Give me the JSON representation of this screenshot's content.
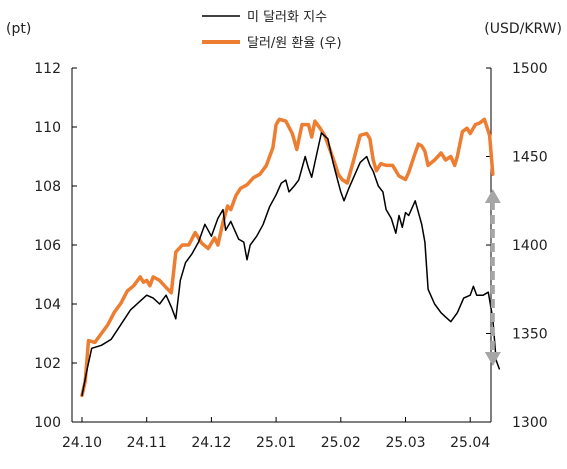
{
  "chart_data": {
    "type": "line",
    "title": "",
    "left_axis": {
      "label": "(pt)",
      "ylim": [
        100,
        112
      ],
      "ticks": [
        100,
        102,
        104,
        106,
        108,
        110,
        112
      ]
    },
    "right_axis": {
      "label": "(USD/KRW)",
      "ylim": [
        1300,
        1500
      ],
      "ticks": [
        1300,
        1350,
        1400,
        1450,
        1500
      ]
    },
    "x_axis": {
      "ticks": [
        "24.10",
        "24.11",
        "24.12",
        "25.01",
        "25.02",
        "25.03",
        "25.04"
      ],
      "range_months": [
        0,
        6.45
      ]
    },
    "grid": false,
    "legend_position": "top-center",
    "series": [
      {
        "name": "미 달러화 지수",
        "axis": "left",
        "color": "#000000",
        "points": [
          [
            0.0,
            100.9
          ],
          [
            0.08,
            101.8
          ],
          [
            0.15,
            102.5
          ],
          [
            0.3,
            102.6
          ],
          [
            0.45,
            102.8
          ],
          [
            0.6,
            103.3
          ],
          [
            0.75,
            103.8
          ],
          [
            0.9,
            104.1
          ],
          [
            1.0,
            104.3
          ],
          [
            1.1,
            104.2
          ],
          [
            1.2,
            104.0
          ],
          [
            1.3,
            104.3
          ],
          [
            1.38,
            103.9
          ],
          [
            1.45,
            103.5
          ],
          [
            1.52,
            104.8
          ],
          [
            1.6,
            105.4
          ],
          [
            1.7,
            105.7
          ],
          [
            1.8,
            106.1
          ],
          [
            1.9,
            106.7
          ],
          [
            2.0,
            106.3
          ],
          [
            2.1,
            106.9
          ],
          [
            2.18,
            107.2
          ],
          [
            2.22,
            106.5
          ],
          [
            2.3,
            106.8
          ],
          [
            2.42,
            106.2
          ],
          [
            2.5,
            106.1
          ],
          [
            2.55,
            105.5
          ],
          [
            2.6,
            106.0
          ],
          [
            2.7,
            106.3
          ],
          [
            2.8,
            106.7
          ],
          [
            2.9,
            107.3
          ],
          [
            3.0,
            107.7
          ],
          [
            3.08,
            108.1
          ],
          [
            3.15,
            108.2
          ],
          [
            3.2,
            107.8
          ],
          [
            3.28,
            108.0
          ],
          [
            3.35,
            108.2
          ],
          [
            3.45,
            109.0
          ],
          [
            3.5,
            108.6
          ],
          [
            3.55,
            108.3
          ],
          [
            3.6,
            108.8
          ],
          [
            3.7,
            109.8
          ],
          [
            3.8,
            109.6
          ],
          [
            3.88,
            108.8
          ],
          [
            3.95,
            108.2
          ],
          [
            4.0,
            107.8
          ],
          [
            4.05,
            107.5
          ],
          [
            4.12,
            107.9
          ],
          [
            4.2,
            108.3
          ],
          [
            4.3,
            108.8
          ],
          [
            4.4,
            109.0
          ],
          [
            4.45,
            108.7
          ],
          [
            4.5,
            108.5
          ],
          [
            4.58,
            108.0
          ],
          [
            4.65,
            107.8
          ],
          [
            4.7,
            107.2
          ],
          [
            4.78,
            106.9
          ],
          [
            4.85,
            106.4
          ],
          [
            4.9,
            107.0
          ],
          [
            4.95,
            106.6
          ],
          [
            5.0,
            107.1
          ],
          [
            5.05,
            107.0
          ],
          [
            5.15,
            107.5
          ],
          [
            5.25,
            106.7
          ],
          [
            5.3,
            106.1
          ],
          [
            5.35,
            104.5
          ],
          [
            5.45,
            104.0
          ],
          [
            5.55,
            103.7
          ],
          [
            5.6,
            103.6
          ],
          [
            5.7,
            103.4
          ],
          [
            5.8,
            103.7
          ],
          [
            5.9,
            104.2
          ],
          [
            6.0,
            104.3
          ],
          [
            6.05,
            104.6
          ],
          [
            6.1,
            104.3
          ],
          [
            6.2,
            104.3
          ],
          [
            6.28,
            104.4
          ],
          [
            6.35,
            103.5
          ],
          [
            6.4,
            102.1
          ],
          [
            6.45,
            101.8
          ]
        ]
      },
      {
        "name": "달러/원 환율 (우)",
        "axis": "right",
        "color": "#ED7D31",
        "points": [
          [
            0.0,
            1315
          ],
          [
            0.05,
            1323
          ],
          [
            0.1,
            1346
          ],
          [
            0.2,
            1345
          ],
          [
            0.3,
            1350
          ],
          [
            0.4,
            1355
          ],
          [
            0.5,
            1362
          ],
          [
            0.6,
            1367
          ],
          [
            0.7,
            1374
          ],
          [
            0.8,
            1377
          ],
          [
            0.9,
            1382
          ],
          [
            0.95,
            1379
          ],
          [
            1.0,
            1380
          ],
          [
            1.05,
            1377
          ],
          [
            1.1,
            1382
          ],
          [
            1.2,
            1380
          ],
          [
            1.3,
            1376
          ],
          [
            1.38,
            1373
          ],
          [
            1.45,
            1396
          ],
          [
            1.55,
            1400
          ],
          [
            1.65,
            1400
          ],
          [
            1.75,
            1407
          ],
          [
            1.85,
            1401
          ],
          [
            1.95,
            1398
          ],
          [
            2.05,
            1404
          ],
          [
            2.1,
            1400
          ],
          [
            2.18,
            1413
          ],
          [
            2.25,
            1422
          ],
          [
            2.3,
            1420
          ],
          [
            2.38,
            1428
          ],
          [
            2.45,
            1432
          ],
          [
            2.55,
            1434
          ],
          [
            2.65,
            1438
          ],
          [
            2.75,
            1440
          ],
          [
            2.85,
            1445
          ],
          [
            2.95,
            1455
          ],
          [
            3.0,
            1468
          ],
          [
            3.05,
            1471
          ],
          [
            3.15,
            1470
          ],
          [
            3.25,
            1463
          ],
          [
            3.32,
            1454
          ],
          [
            3.4,
            1468
          ],
          [
            3.5,
            1468
          ],
          [
            3.55,
            1461
          ],
          [
            3.6,
            1470
          ],
          [
            3.68,
            1466
          ],
          [
            3.75,
            1462
          ],
          [
            3.82,
            1455
          ],
          [
            3.9,
            1447
          ],
          [
            3.96,
            1440
          ],
          [
            4.02,
            1437
          ],
          [
            4.1,
            1435
          ],
          [
            4.2,
            1448
          ],
          [
            4.3,
            1462
          ],
          [
            4.4,
            1463
          ],
          [
            4.45,
            1460
          ],
          [
            4.5,
            1448
          ],
          [
            4.55,
            1442
          ],
          [
            4.62,
            1446
          ],
          [
            4.7,
            1445
          ],
          [
            4.8,
            1445
          ],
          [
            4.9,
            1439
          ],
          [
            5.0,
            1437
          ],
          [
            5.05,
            1441
          ],
          [
            5.15,
            1452
          ],
          [
            5.2,
            1457
          ],
          [
            5.25,
            1456
          ],
          [
            5.3,
            1453
          ],
          [
            5.35,
            1445
          ],
          [
            5.45,
            1448
          ],
          [
            5.55,
            1452
          ],
          [
            5.62,
            1448
          ],
          [
            5.7,
            1450
          ],
          [
            5.76,
            1445
          ],
          [
            5.8,
            1450
          ],
          [
            5.88,
            1464
          ],
          [
            5.95,
            1466
          ],
          [
            6.0,
            1463
          ],
          [
            6.08,
            1468
          ],
          [
            6.15,
            1469
          ],
          [
            6.22,
            1471
          ],
          [
            6.3,
            1462
          ],
          [
            6.35,
            1440
          ]
        ]
      }
    ],
    "annotations": [
      {
        "type": "double-arrow",
        "style": "dashed",
        "color": "#A6A6A6",
        "x_month": 6.35,
        "from_left_value": 107.9,
        "to_left_value": 101.9
      }
    ]
  }
}
